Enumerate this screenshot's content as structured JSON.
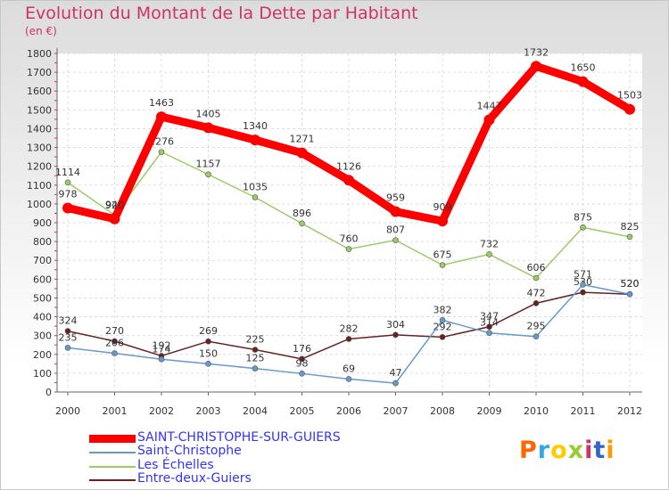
{
  "title": "Evolution du Montant de la Dette par Habitant",
  "unit": "(en €)",
  "chart_data": {
    "type": "line",
    "title": "Evolution du Montant de la Dette par Habitant",
    "ylabel": "(en €)",
    "xlabel": "",
    "ylim": [
      0,
      1800
    ],
    "yticks": [
      0,
      100,
      200,
      300,
      400,
      500,
      600,
      700,
      800,
      900,
      1000,
      1100,
      1200,
      1300,
      1400,
      1500,
      1600,
      1700,
      1800
    ],
    "x": [
      "2000",
      "2001",
      "2002",
      "2003",
      "2004",
      "2005",
      "2006",
      "2007",
      "2008",
      "2009",
      "2010",
      "2011",
      "2012"
    ],
    "grid": true,
    "legend_position": "bottom-left",
    "series": [
      {
        "name": "SAINT-CHRISTOPHE-SUR-GUIERS",
        "color": "#ff0000",
        "values": [
          978,
          920,
          1463,
          1405,
          1340,
          1271,
          1126,
          959,
          909,
          1447,
          1732,
          1650,
          1503
        ],
        "labels": [
          "978",
          "920",
          "1463",
          "1405",
          "1340",
          "1271",
          "1126",
          "959",
          "909",
          "1447",
          "1732",
          "1650",
          "1503"
        ]
      },
      {
        "name": "Saint-Christophe",
        "color": "#6699cc",
        "values": [
          235,
          206,
          174,
          150,
          125,
          98,
          69,
          47,
          382,
          314,
          295,
          571,
          520
        ],
        "labels": [
          "235",
          "206",
          "174",
          "150",
          "125",
          "98",
          "69",
          "47",
          "382",
          "314",
          "295",
          "571",
          "520"
        ]
      },
      {
        "name": "Les Échelles",
        "color": "#99cc66",
        "values": [
          1114,
          941,
          1276,
          1157,
          1035,
          896,
          760,
          807,
          675,
          732,
          606,
          875,
          825
        ],
        "labels": [
          "1114",
          "941",
          "1276",
          "1157",
          "1035",
          "896",
          "760",
          "807",
          "675",
          "732",
          "606",
          "875",
          "825"
        ]
      },
      {
        "name": "Entre-deux-Guiers",
        "color": "#662222",
        "values": [
          324,
          270,
          192,
          269,
          225,
          176,
          282,
          304,
          292,
          347,
          472,
          530,
          520
        ],
        "labels": [
          "324",
          "270",
          "192",
          "269",
          "225",
          "176",
          "282",
          "304",
          "292",
          "347",
          "472",
          "530",
          "520"
        ]
      }
    ]
  },
  "logo": {
    "text": "Proxiti",
    "letters": [
      "P",
      "r",
      "o",
      "x",
      "i",
      "t",
      "i"
    ],
    "colors": [
      "#ff6600",
      "#33aadd",
      "#ffcc00",
      "#99cc33",
      "#cc3366",
      "#3366cc",
      "#ff9900"
    ]
  }
}
